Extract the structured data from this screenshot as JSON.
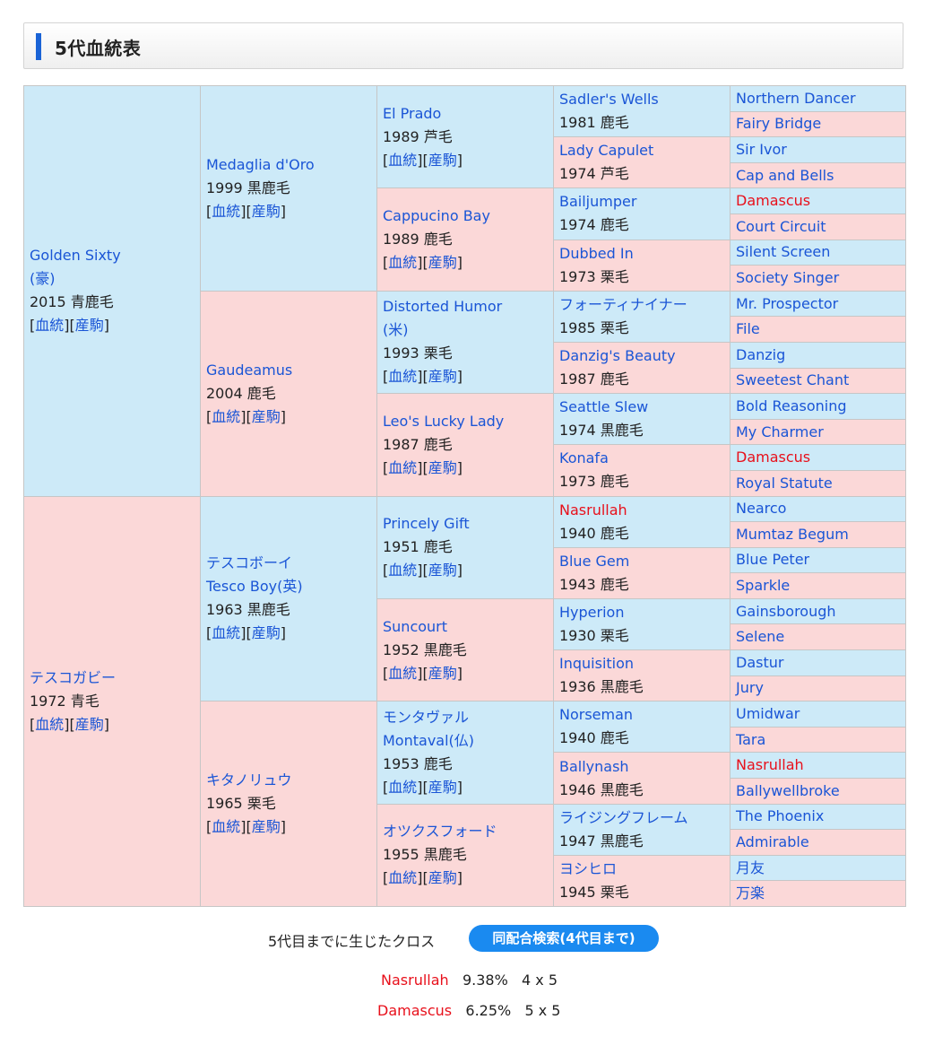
{
  "header": {
    "title": "5代血統表"
  },
  "links": {
    "pedigree": "血統",
    "progeny": "産駒"
  },
  "gen1": [
    {
      "name": "Golden Sixty",
      "name2": "(豪)",
      "meta": "2015 青鹿毛",
      "color": "blue"
    },
    {
      "name": "テスコガビー",
      "meta": "1972 青毛",
      "color": "pink"
    }
  ],
  "gen2": [
    {
      "name": "Medaglia d'Oro",
      "meta": "1999 黒鹿毛",
      "color": "blue"
    },
    {
      "name": "Gaudeamus",
      "meta": "2004 鹿毛",
      "color": "pink"
    },
    {
      "name": "テスコボーイ",
      "name2": "Tesco Boy(英)",
      "meta": "1963 黒鹿毛",
      "color": "blue"
    },
    {
      "name": "キタノリュウ",
      "meta": "1965 栗毛",
      "color": "pink"
    }
  ],
  "gen3": [
    {
      "name": "El Prado",
      "meta": "1989 芦毛",
      "color": "blue"
    },
    {
      "name": "Cappucino Bay",
      "meta": "1989 鹿毛",
      "color": "pink"
    },
    {
      "name": "Distorted Humor",
      "name2": "(米)",
      "meta": "1993 栗毛",
      "color": "blue"
    },
    {
      "name": "Leo's Lucky Lady",
      "meta": "1987 鹿毛",
      "color": "pink"
    },
    {
      "name": "Princely Gift",
      "meta": "1951 鹿毛",
      "color": "blue"
    },
    {
      "name": "Suncourt",
      "meta": "1952 黒鹿毛",
      "color": "pink"
    },
    {
      "name": "モンタヴァル",
      "name2": "Montaval(仏)",
      "meta": "1953 鹿毛",
      "color": "blue"
    },
    {
      "name": "オツクスフォード",
      "meta": "1955 黒鹿毛",
      "color": "pink"
    }
  ],
  "gen4": [
    {
      "name": "Sadler's Wells",
      "meta": "1981 鹿毛",
      "color": "blue"
    },
    {
      "name": "Lady Capulet",
      "meta": "1974 芦毛",
      "color": "pink"
    },
    {
      "name": "Bailjumper",
      "meta": "1974 鹿毛",
      "color": "blue"
    },
    {
      "name": "Dubbed In",
      "meta": "1973 栗毛",
      "color": "pink"
    },
    {
      "name": "フォーティナイナー",
      "meta": "1985 栗毛",
      "color": "blue"
    },
    {
      "name": "Danzig's Beauty",
      "meta": "1987 鹿毛",
      "color": "pink"
    },
    {
      "name": "Seattle Slew",
      "meta": "1974 黒鹿毛",
      "color": "blue"
    },
    {
      "name": "Konafa",
      "meta": "1973 鹿毛",
      "color": "pink"
    },
    {
      "name": "Nasrullah",
      "meta": "1940 鹿毛",
      "color": "blue",
      "cross": true
    },
    {
      "name": "Blue Gem",
      "meta": "1943 鹿毛",
      "color": "pink"
    },
    {
      "name": "Hyperion",
      "meta": "1930 栗毛",
      "color": "blue"
    },
    {
      "name": "Inquisition",
      "meta": "1936 黒鹿毛",
      "color": "pink"
    },
    {
      "name": "Norseman",
      "meta": "1940 鹿毛",
      "color": "blue"
    },
    {
      "name": "Ballynash",
      "meta": "1946 黒鹿毛",
      "color": "pink"
    },
    {
      "name": "ライジングフレーム",
      "meta": "1947 黒鹿毛",
      "color": "blue"
    },
    {
      "name": "ヨシヒロ",
      "meta": "1945 栗毛",
      "color": "pink"
    }
  ],
  "gen5": [
    {
      "name": "Northern Dancer",
      "color": "blue"
    },
    {
      "name": "Fairy Bridge",
      "color": "pink"
    },
    {
      "name": "Sir Ivor",
      "color": "blue"
    },
    {
      "name": "Cap and Bells",
      "color": "pink"
    },
    {
      "name": "Damascus",
      "color": "blue",
      "cross": true
    },
    {
      "name": "Court Circuit",
      "color": "pink"
    },
    {
      "name": "Silent Screen",
      "color": "blue"
    },
    {
      "name": "Society Singer",
      "color": "pink"
    },
    {
      "name": "Mr. Prospector",
      "color": "blue"
    },
    {
      "name": "File",
      "color": "pink"
    },
    {
      "name": "Danzig",
      "color": "blue"
    },
    {
      "name": "Sweetest Chant",
      "color": "pink"
    },
    {
      "name": "Bold Reasoning",
      "color": "blue"
    },
    {
      "name": "My Charmer",
      "color": "pink"
    },
    {
      "name": "Damascus",
      "color": "blue",
      "cross": true
    },
    {
      "name": "Royal Statute",
      "color": "pink"
    },
    {
      "name": "Nearco",
      "color": "blue"
    },
    {
      "name": "Mumtaz Begum",
      "color": "pink"
    },
    {
      "name": "Blue Peter",
      "color": "blue"
    },
    {
      "name": "Sparkle",
      "color": "pink"
    },
    {
      "name": "Gainsborough",
      "color": "blue"
    },
    {
      "name": "Selene",
      "color": "pink"
    },
    {
      "name": "Dastur",
      "color": "blue"
    },
    {
      "name": "Jury",
      "color": "pink"
    },
    {
      "name": "Umidwar",
      "color": "blue"
    },
    {
      "name": "Tara",
      "color": "pink"
    },
    {
      "name": "Nasrullah",
      "color": "blue",
      "cross": true
    },
    {
      "name": "Ballywellbroke",
      "color": "pink"
    },
    {
      "name": "The Phoenix",
      "color": "blue"
    },
    {
      "name": "Admirable",
      "color": "pink"
    },
    {
      "name": "月友",
      "color": "blue"
    },
    {
      "name": "万楽",
      "color": "pink"
    }
  ],
  "cross": {
    "label": "5代目までに生じたクロス",
    "button": "同配合検索(4代目まで)",
    "rows": [
      {
        "name": "Nasrullah",
        "pct": "9.38%",
        "gen": "4 x 5"
      },
      {
        "name": "Damascus",
        "pct": "6.25%",
        "gen": "5 x 5"
      }
    ]
  }
}
